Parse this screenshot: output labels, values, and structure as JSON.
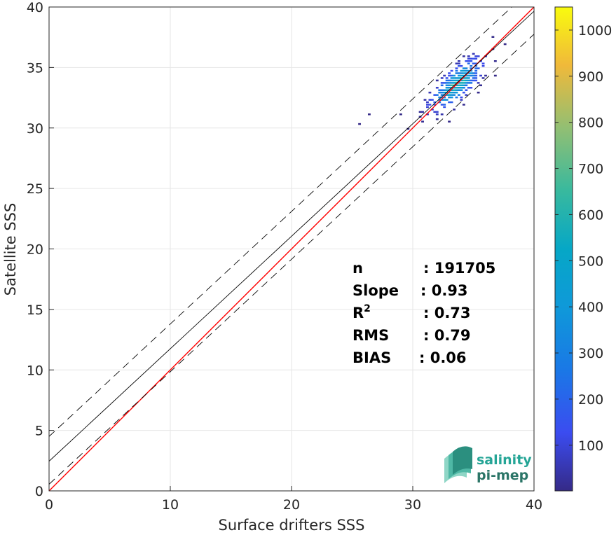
{
  "chart_data": {
    "type": "heatmap",
    "subtype": "2D density scatter (satellite vs in-situ)",
    "xlabel": "Surface drifters SSS",
    "ylabel": "Satellite SSS",
    "xlim": [
      0,
      40
    ],
    "ylim": [
      0,
      40
    ],
    "xticks": [
      0,
      10,
      20,
      30,
      40
    ],
    "yticks": [
      0,
      5,
      10,
      15,
      20,
      25,
      30,
      35,
      40
    ],
    "grid": true,
    "colorbar": {
      "colormap": "parula",
      "range": [
        1,
        1050
      ],
      "ticks": [
        100,
        200,
        300,
        400,
        500,
        600,
        700,
        800,
        900,
        1000
      ]
    },
    "lines": [
      {
        "role": "one-to-one",
        "color": "#ff0000",
        "style": "solid",
        "slope": 1.0,
        "intercept": 0.0
      },
      {
        "role": "regression",
        "color": "#000000",
        "style": "solid",
        "slope": 0.93,
        "intercept": 2.45
      },
      {
        "role": "regression-upper",
        "color": "#000000",
        "style": "dashed",
        "slope": 0.93,
        "intercept": 4.5
      },
      {
        "role": "regression-lower",
        "color": "#000000",
        "style": "dashed",
        "slope": 0.93,
        "intercept": 0.55
      }
    ],
    "density_cloud": {
      "center": [
        33.5,
        33.5
      ],
      "x_extent": [
        24.5,
        38.0
      ],
      "y_extent": [
        27.0,
        38.5
      ],
      "peak_count": 1050
    },
    "stats": [
      {
        "key": "n",
        "sep": ": ",
        "value": "191705"
      },
      {
        "key": "Slope",
        "sep": ": ",
        "value": "0.93"
      },
      {
        "key": "R",
        "sup": "2",
        "sep": ": ",
        "value": "0.73"
      },
      {
        "key": "RMS",
        "sep": ": ",
        "value": "0.79"
      },
      {
        "key": "BIAS",
        "sep": ": ",
        "value": "0.06"
      }
    ]
  },
  "logo": {
    "line1": "salinity",
    "line2": "pi-mep",
    "colors": [
      "#25a596",
      "#2b7567",
      "#8fd6c6"
    ]
  }
}
